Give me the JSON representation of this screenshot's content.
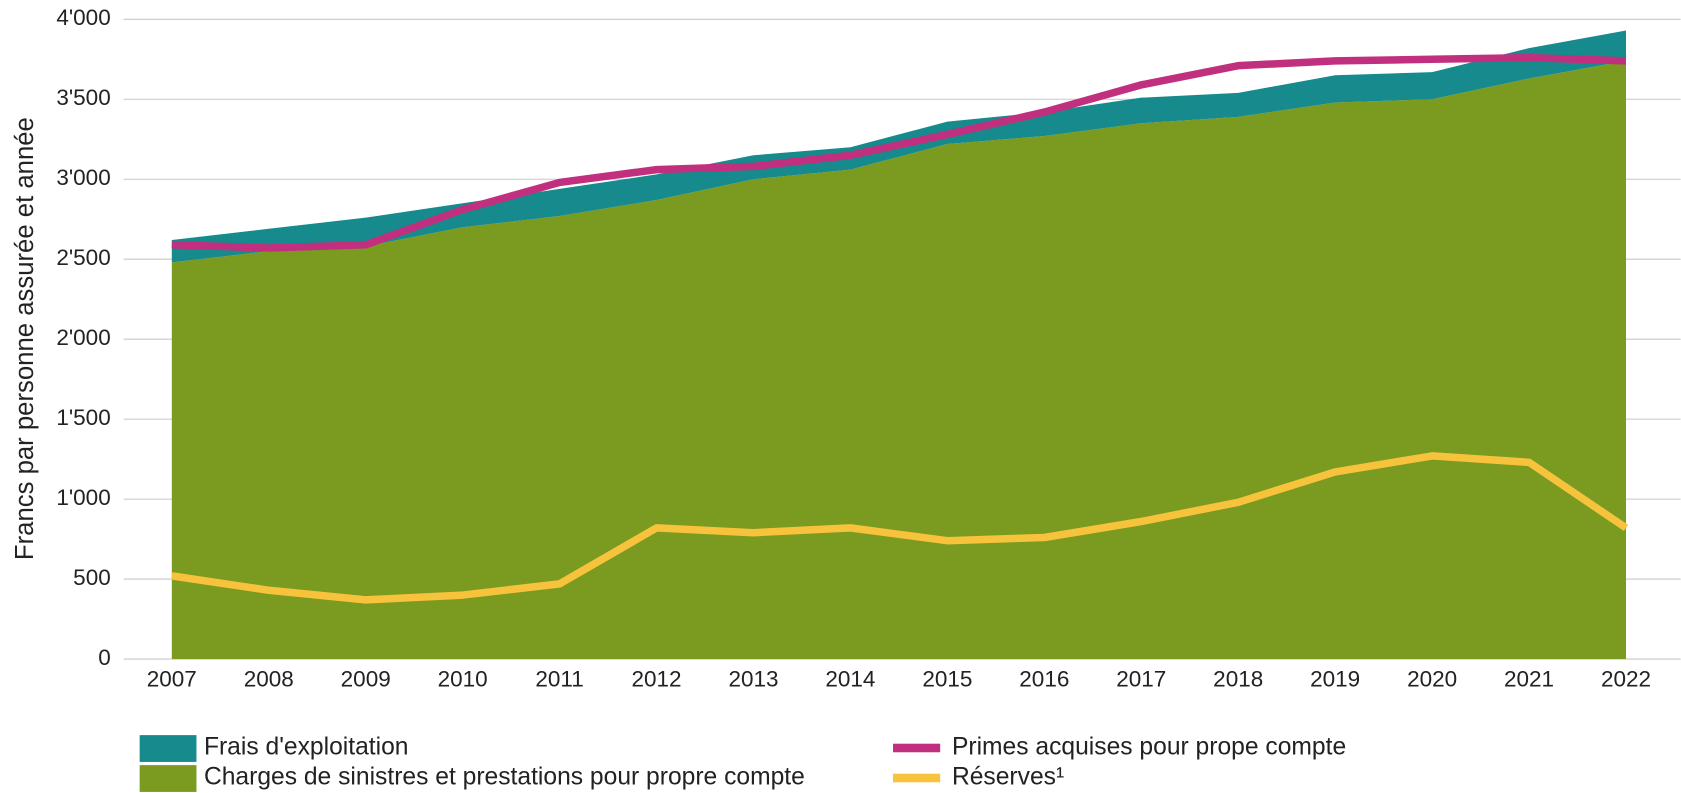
{
  "chart_data": {
    "type": "area",
    "y_label": "Francs par personne assurée et année",
    "categories": [
      "2007",
      "2008",
      "2009",
      "2010",
      "2011",
      "2012",
      "2013",
      "2014",
      "2015",
      "2016",
      "2017",
      "2018",
      "2019",
      "2020",
      "2021",
      "2022"
    ],
    "series": [
      {
        "name": "Frais d'exploitation",
        "type": "area",
        "stack": true,
        "color": "#168a8c",
        "values": [
          140,
          140,
          180,
          150,
          170,
          160,
          150,
          140,
          140,
          150,
          160,
          150,
          170,
          170,
          190,
          190
        ]
      },
      {
        "name": "Charges de sinistres et prestations pour propre compte",
        "type": "area",
        "stack": true,
        "color": "#7a9a20",
        "values": [
          2480,
          2550,
          2580,
          2700,
          2770,
          2870,
          3000,
          3060,
          3220,
          3270,
          3350,
          3390,
          3480,
          3500,
          3630,
          3740
        ]
      },
      {
        "name": "Primes acquises pour prope compte",
        "type": "line",
        "color": "#c0307f",
        "values": [
          2590,
          2570,
          2590,
          2810,
          2980,
          3060,
          3080,
          3150,
          3280,
          3420,
          3590,
          3710,
          3740,
          3750,
          3760,
          3740
        ]
      },
      {
        "name": "Réserves¹",
        "type": "line",
        "color": "#f7c33c",
        "values": [
          520,
          430,
          370,
          400,
          470,
          820,
          790,
          820,
          740,
          760,
          860,
          980,
          1170,
          1270,
          1230,
          820
        ]
      }
    ],
    "ylim": [
      0,
      4000
    ],
    "yticks": [
      0,
      500,
      {
        "value": 1000,
        "label": "1'000"
      },
      {
        "value": 1500,
        "label": "1'500"
      },
      {
        "value": 2000,
        "label": "2'000"
      },
      {
        "value": 2500,
        "label": "2'500"
      },
      {
        "value": 3000,
        "label": "3'000"
      },
      {
        "value": 3500,
        "label": "3'500"
      },
      {
        "value": 4000,
        "label": "4'000"
      }
    ],
    "grid": true,
    "legend": "bottom"
  }
}
